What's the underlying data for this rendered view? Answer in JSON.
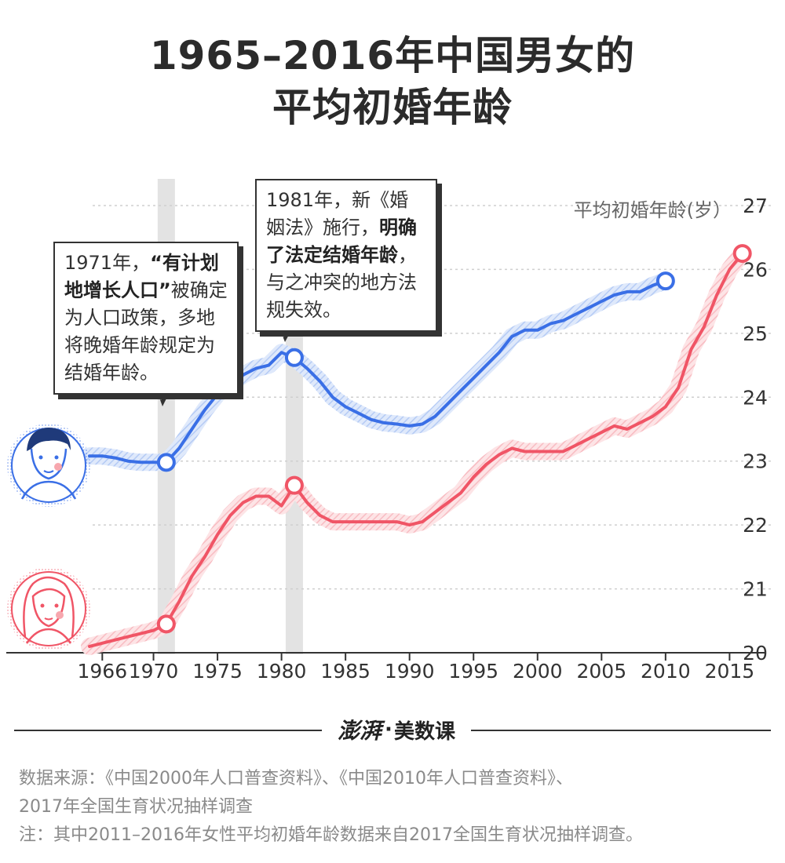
{
  "title": {
    "line1": "1965–2016年中国男女的",
    "line2": "平均初婚年龄"
  },
  "chart_data": {
    "type": "line",
    "ylabel": "平均初婚年龄(岁）",
    "ylim": [
      20,
      27
    ],
    "yticks": [
      "20",
      "21",
      "22",
      "23",
      "24",
      "25",
      "26",
      "27"
    ],
    "xticks": [
      "1966",
      "1970",
      "1975",
      "1980",
      "1985",
      "1990",
      "1995",
      "2000",
      "2005",
      "2010",
      "2015"
    ],
    "xlim": [
      1965,
      2017
    ],
    "grid": true,
    "series": [
      {
        "role": "male",
        "color": "#3a6fe6",
        "x": [
          1965,
          1966,
          1967,
          1968,
          1969,
          1970,
          1971,
          1972,
          1973,
          1974,
          1975,
          1976,
          1977,
          1978,
          1979,
          1980,
          1981,
          1982,
          1983,
          1984,
          1985,
          1986,
          1987,
          1988,
          1989,
          1990,
          1991,
          1992,
          1993,
          1994,
          1995,
          1996,
          1997,
          1998,
          1999,
          2000,
          2001,
          2002,
          2003,
          2004,
          2005,
          2006,
          2007,
          2008,
          2009,
          2010
        ],
        "y": [
          23.08,
          23.08,
          23.05,
          23.0,
          22.98,
          22.98,
          22.98,
          23.2,
          23.5,
          23.8,
          24.05,
          24.2,
          24.35,
          24.45,
          24.5,
          24.7,
          24.62,
          24.45,
          24.25,
          24.0,
          23.85,
          23.75,
          23.65,
          23.6,
          23.58,
          23.55,
          23.58,
          23.7,
          23.9,
          24.1,
          24.3,
          24.5,
          24.7,
          24.95,
          25.05,
          25.05,
          25.15,
          25.2,
          25.3,
          25.4,
          25.5,
          25.6,
          25.65,
          25.65,
          25.75,
          25.82
        ],
        "markers": [
          {
            "x": 1971,
            "y": 22.98
          },
          {
            "x": 1981,
            "y": 24.62
          },
          {
            "x": 2010,
            "y": 25.82
          }
        ]
      },
      {
        "role": "female",
        "color": "#f05566",
        "x": [
          1965,
          1966,
          1967,
          1968,
          1969,
          1970,
          1971,
          1972,
          1973,
          1974,
          1975,
          1976,
          1977,
          1978,
          1979,
          1980,
          1981,
          1982,
          1983,
          1984,
          1985,
          1986,
          1987,
          1988,
          1989,
          1990,
          1991,
          1992,
          1993,
          1994,
          1995,
          1996,
          1997,
          1998,
          1999,
          2000,
          2001,
          2002,
          2003,
          2004,
          2005,
          2006,
          2007,
          2008,
          2009,
          2010,
          2011,
          2012,
          2013,
          2014,
          2015,
          2016
        ],
        "y": [
          20.1,
          20.15,
          20.2,
          20.25,
          20.3,
          20.35,
          20.45,
          20.8,
          21.2,
          21.5,
          21.85,
          22.15,
          22.35,
          22.45,
          22.45,
          22.3,
          22.62,
          22.35,
          22.15,
          22.05,
          22.05,
          22.05,
          22.05,
          22.05,
          22.05,
          22.0,
          22.05,
          22.2,
          22.35,
          22.5,
          22.75,
          22.95,
          23.1,
          23.2,
          23.15,
          23.15,
          23.15,
          23.15,
          23.25,
          23.35,
          23.45,
          23.55,
          23.5,
          23.6,
          23.7,
          23.85,
          24.15,
          24.75,
          25.1,
          25.6,
          26.0,
          26.25
        ],
        "markers": [
          {
            "x": 1971,
            "y": 20.45
          },
          {
            "x": 1981,
            "y": 22.62
          },
          {
            "x": 2016,
            "y": 26.25
          }
        ]
      }
    ],
    "highlight_years": [
      1971,
      1981
    ]
  },
  "annotations": [
    {
      "pre": "1971年，",
      "bold": "“有计划地增长人口”",
      "post": "被确定为人口政策，多地将晚婚年龄规定为结婚年龄。"
    },
    {
      "pre": "1981年，新《婚姻法》施行，",
      "bold": "明确了法定结婚年龄",
      "post": "，与之冲突的地方法规失效。"
    }
  ],
  "brand": {
    "logo": "澎湃",
    "sep": "·",
    "name": "美数课"
  },
  "notes": {
    "source_line1": "数据来源：《中国2000年人口普查资料》、《中国2010年人口普查资料》、",
    "source_line2": "2017年全国生育状况抽样调查",
    "note": "注：其中2011–2016年女性平均初婚年龄数据来自2017全国生育状况抽样调查。"
  },
  "colors": {
    "male": "#3a6fe6",
    "female": "#f05566",
    "band": "#e3e3e3"
  }
}
